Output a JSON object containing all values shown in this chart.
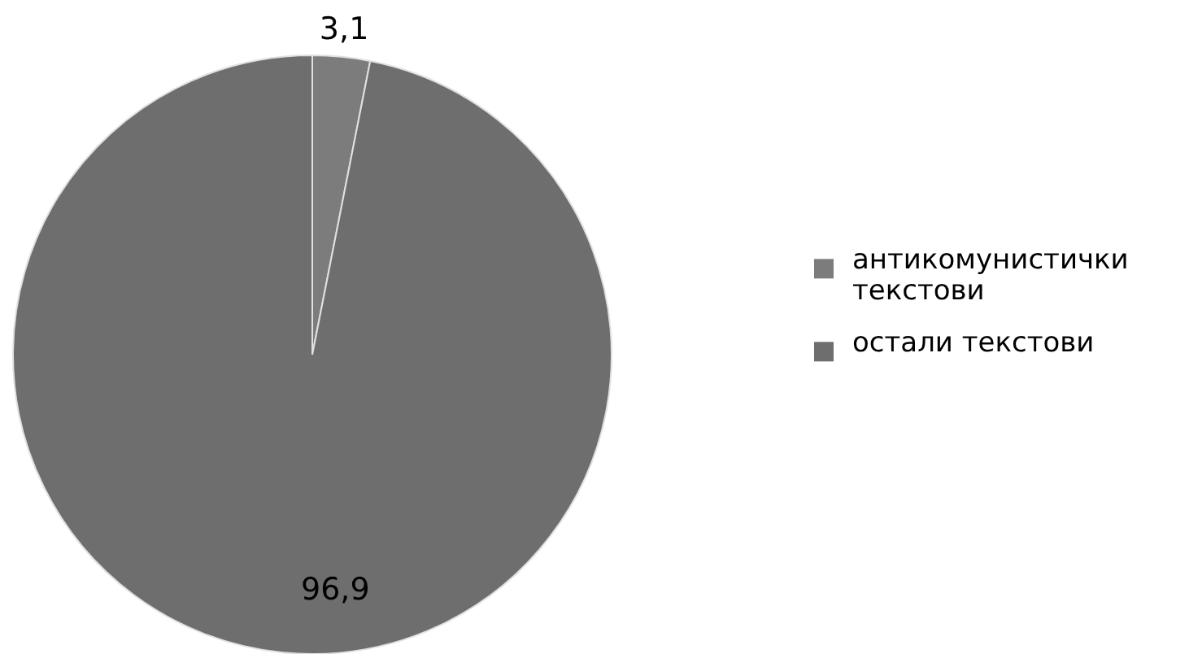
{
  "chart_data": {
    "type": "pie",
    "categories": [
      "антикомунистички текстови",
      "остали текстови"
    ],
    "values": [
      3.1,
      96.9
    ],
    "colors": [
      "#7c7c7c",
      "#6e6e6e"
    ],
    "value_labels": [
      "3,1",
      "96,9"
    ],
    "legend": "right"
  }
}
